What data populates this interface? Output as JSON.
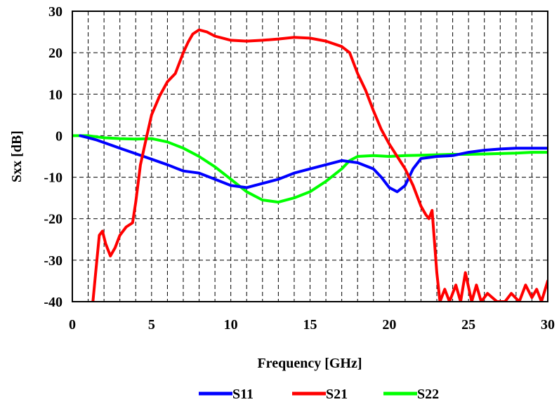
{
  "chart_data": {
    "type": "line",
    "title": "",
    "xlabel": "Frequency [GHz]",
    "ylabel": "Sxx [dB]",
    "xlim": [
      0,
      30
    ],
    "ylim": [
      -40,
      30
    ],
    "xticks": [
      0,
      5,
      10,
      15,
      20,
      25,
      30
    ],
    "yticks": [
      30,
      20,
      10,
      0,
      -10,
      -20,
      -30,
      -40
    ],
    "xtick_labels": [
      "0",
      "5",
      "10",
      "15",
      "20",
      "25",
      "30"
    ],
    "ytick_labels": [
      "30",
      "20",
      "10",
      "0",
      "-10",
      "-20",
      "-30",
      "-40"
    ],
    "grid": "dashed, every 1 GHz and 10 dB",
    "legend_position": "bottom-center",
    "series": [
      {
        "name": "S11",
        "color": "#0000ff",
        "x": [
          0.5,
          1.5,
          3,
          4.5,
          6,
          7,
          8,
          9,
          10,
          11,
          12,
          13,
          14,
          15,
          16,
          17,
          18,
          19,
          19.5,
          20,
          20.5,
          21,
          21.5,
          22,
          23,
          24,
          25,
          26,
          27,
          28,
          29,
          30
        ],
        "y": [
          0,
          -1,
          -3,
          -5,
          -7,
          -8.5,
          -9,
          -10.5,
          -12,
          -12.5,
          -11.5,
          -10.5,
          -9,
          -8,
          -7,
          -6,
          -6.5,
          -8,
          -10,
          -12.5,
          -13.5,
          -12,
          -8,
          -5.5,
          -5,
          -4.8,
          -4,
          -3.5,
          -3.2,
          -3,
          -3,
          -3
        ]
      },
      {
        "name": "S21",
        "color": "#ff0000",
        "x": [
          1.3,
          1.5,
          1.7,
          1.9,
          2.1,
          2.4,
          2.7,
          3.0,
          3.4,
          3.8,
          4.0,
          4.3,
          4.7,
          5.0,
          5.5,
          6.0,
          6.5,
          7.0,
          7.3,
          7.6,
          8.0,
          8.5,
          9.0,
          9.5,
          10,
          11,
          12,
          13,
          14,
          15,
          16,
          17,
          17.5,
          18,
          18.5,
          19,
          19.5,
          20,
          20.5,
          21,
          21.5,
          22,
          22.3,
          22.5,
          22.7,
          23,
          23.2,
          23.5,
          23.8,
          24.2,
          24.5,
          24.8,
          25.2,
          25.5,
          25.8,
          26.2,
          26.8,
          27.3,
          27.7,
          28.2,
          28.6,
          29,
          29.3,
          29.6,
          30
        ],
        "y": [
          -40,
          -32,
          -24,
          -23,
          -26,
          -29,
          -27,
          -24,
          -22,
          -21,
          -16,
          -7,
          0,
          5,
          9.5,
          13,
          15,
          20,
          22.5,
          24.5,
          25.5,
          25,
          24,
          23.5,
          23,
          22.8,
          23,
          23.3,
          23.7,
          23.5,
          22.8,
          21.5,
          20,
          15,
          11,
          6,
          1.5,
          -2,
          -5,
          -8,
          -12,
          -17,
          -19,
          -20,
          -18,
          -33,
          -40,
          -37,
          -40,
          -36,
          -40,
          -33,
          -40,
          -36,
          -40,
          -38,
          -40,
          -40,
          -38,
          -40,
          -36,
          -39,
          -37,
          -40,
          -35
        ]
      },
      {
        "name": "S22",
        "color": "#00ff00",
        "x": [
          0,
          1,
          2,
          3,
          4,
          5,
          6,
          7,
          8,
          9,
          10,
          11,
          12,
          13,
          14,
          15,
          16,
          17,
          17.5,
          18,
          19,
          20,
          21,
          22,
          23,
          24,
          25,
          26,
          27,
          28,
          29,
          30
        ],
        "y": [
          0,
          0,
          -0.5,
          -0.7,
          -0.8,
          -0.7,
          -1.5,
          -3,
          -5,
          -7.5,
          -10.5,
          -13.5,
          -15.5,
          -16,
          -15,
          -13.5,
          -11,
          -8,
          -6,
          -5,
          -4.8,
          -5,
          -4.8,
          -4.7,
          -4.6,
          -4.5,
          -4.5,
          -4.4,
          -4.3,
          -4.2,
          -4,
          -4
        ]
      }
    ]
  }
}
